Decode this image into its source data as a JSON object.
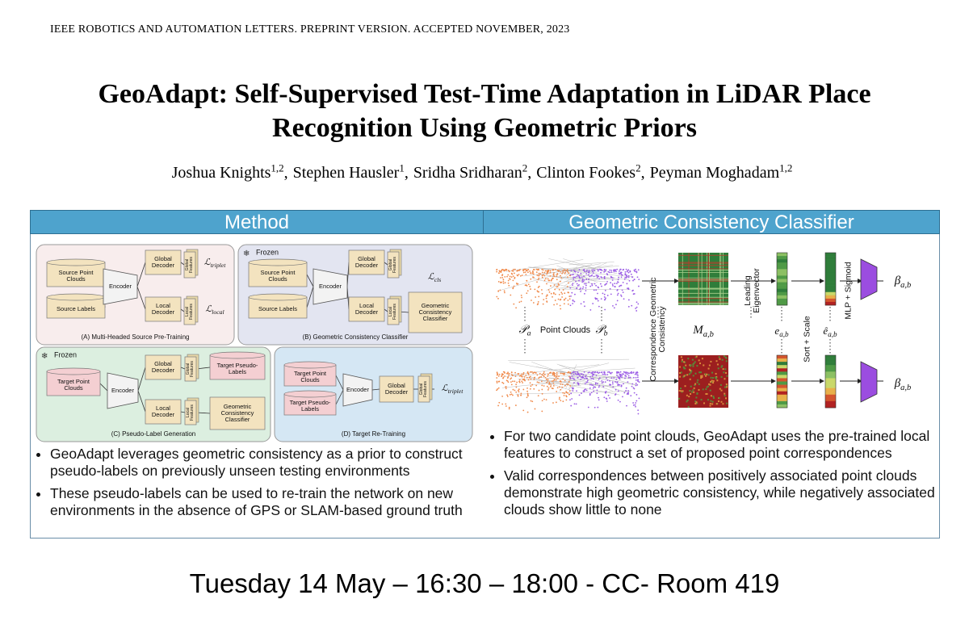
{
  "header": "IEEE ROBOTICS AND AUTOMATION LETTERS. PREPRINT VERSION. ACCEPTED NOVEMBER, 2023",
  "title": "GeoAdapt: Self-Supervised Test-Time Adaptation in LiDAR Place Recognition Using Geometric Priors",
  "authors": {
    "separator": ",",
    "list": [
      {
        "name": "Joshua Knights",
        "affiliation": "1,2"
      },
      {
        "name": "Stephen Hausler",
        "affiliation": "1"
      },
      {
        "name": "Sridha Sridharan",
        "affiliation": "2"
      },
      {
        "name": "Clinton Fookes",
        "affiliation": "2"
      },
      {
        "name": "Peyman Moghadam",
        "affiliation": "1,2"
      }
    ]
  },
  "panels": [
    {
      "heading": "Method",
      "bullets": [
        "GeoAdapt leverages geometric consistency as a prior to construct pseudo-labels on previously unseen testing environments",
        "These pseudo-labels can be used to re-train the network on new environments in the absence of GPS or SLAM-based ground truth"
      ]
    },
    {
      "heading": "Geometric Consistency Classifier",
      "bullets": [
        "For two candidate point clouds, GeoAdapt uses the pre-trained local features to construct a set of proposed point correspondences",
        "Valid correspondences between positively associated point clouds demonstrate high geometric consistency, while negatively associated clouds show little to none"
      ]
    }
  ],
  "method_figure": {
    "subfigures": [
      {
        "caption": "(A) Multi-Headed Source Pre-Training",
        "labels": [
          "Source Point Clouds",
          "Source Labels",
          "Encoder",
          "Global Decoder",
          "Local Decoder",
          "Global Features",
          "Local Features",
          {
            "symbol": "ℒ",
            "sub": "triplet"
          },
          {
            "symbol": "ℒ",
            "sub": "local"
          }
        ]
      },
      {
        "caption": "(B) Geometric Consistency Classifier",
        "frozen": "Frozen",
        "labels": [
          "Source Point Clouds",
          "Source Labels",
          "Encoder",
          "Global Decoder",
          "Local Decoder",
          "Global Features",
          "Local Features",
          "Geometric Consistency Classifier",
          {
            "symbol": "ℒ",
            "sub": "cls"
          }
        ]
      },
      {
        "caption": "(C) Pseudo-Label Generation",
        "frozen": "Frozen",
        "labels": [
          "Target Point Clouds",
          "Encoder",
          "Global Decoder",
          "Local Decoder",
          "Global Features",
          "Local Features",
          "Target Pseudo-Labels",
          "Geometric Consistency Classifier"
        ]
      },
      {
        "caption": "(D) Target Re-Training",
        "labels": [
          "Target Point Clouds",
          "Target Pseudo-Labels",
          "Encoder",
          "Global Decoder",
          "Global Features",
          {
            "symbol": "ℒ",
            "sub": "triplet"
          }
        ]
      }
    ]
  },
  "classifier_figure": {
    "pa": {
      "symbol": "𝒫",
      "sub": "a"
    },
    "point_clouds": "Point Clouds",
    "pb": {
      "symbol": "𝒫",
      "sub": "b"
    },
    "steps": [
      "Correspondence Geometric Consistency",
      "Leading Eigenvector",
      "Sort + Scale",
      "MLP + Sigmoid"
    ],
    "matrix": {
      "symbol": "M",
      "sub": "a,b"
    },
    "eigenvector": {
      "symbol": "e",
      "sub": "a,b"
    },
    "sorted": {
      "symbol": "ê",
      "sub": "a,b"
    },
    "outputs": [
      {
        "symbol": "β",
        "sub": "a,b"
      },
      {
        "symbol": "β",
        "sub": "a,b"
      }
    ]
  },
  "footer": "Tuesday 14 May – 16:30 – 18:00 - CC- Room 419"
}
